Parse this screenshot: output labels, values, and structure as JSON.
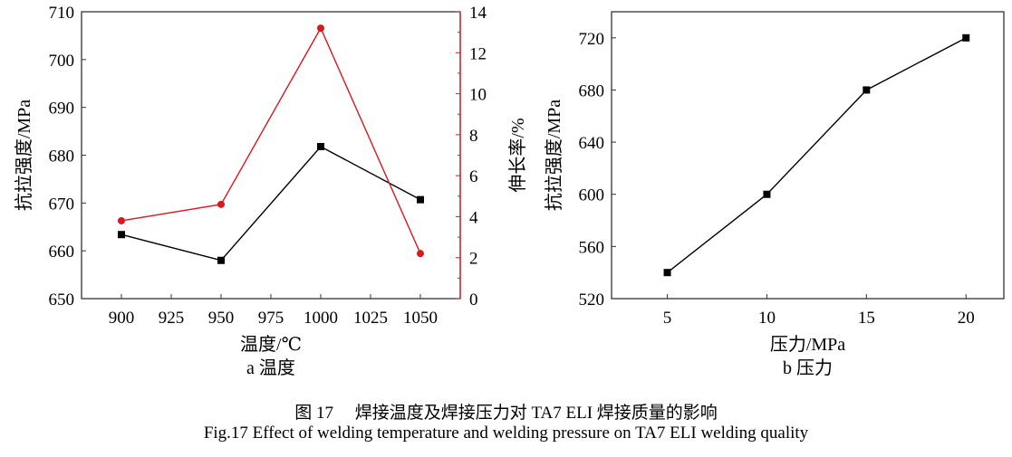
{
  "chart_data": [
    {
      "type": "line",
      "subtitle": "a 温度",
      "xlabel": "温度/℃",
      "ylabel": "抗拉强度/MPa",
      "y2label": "伸长率/%",
      "x": [
        900,
        950,
        1000,
        1050
      ],
      "xticks": [
        900,
        925,
        950,
        975,
        1000,
        1025,
        1050
      ],
      "xlim": [
        880,
        1070
      ],
      "ylim": [
        650,
        710
      ],
      "yticks": [
        650,
        660,
        670,
        680,
        690,
        700,
        710
      ],
      "y2lim": [
        0,
        14
      ],
      "y2ticks": [
        0,
        2,
        4,
        6,
        8,
        10,
        12,
        14
      ],
      "series": [
        {
          "axis": "left",
          "marker": "square",
          "color": "#000000",
          "values": [
            663.4,
            658.0,
            681.8,
            670.7
          ]
        },
        {
          "axis": "right",
          "marker": "circle",
          "color": "#d7191f",
          "values": [
            3.8,
            4.6,
            13.2,
            2.2
          ]
        }
      ],
      "grid": false
    },
    {
      "type": "line",
      "subtitle": "b 压力",
      "xlabel": "压力/MPa",
      "ylabel": "抗拉强度/MPa",
      "x": [
        5,
        10,
        15,
        20
      ],
      "xticks": [
        5,
        10,
        15,
        20
      ],
      "xlim": [
        2.2,
        21.9
      ],
      "ylim": [
        520,
        740
      ],
      "yticks": [
        520,
        560,
        600,
        640,
        680,
        720
      ],
      "series": [
        {
          "axis": "left",
          "marker": "square",
          "color": "#000000",
          "values": [
            540,
            600,
            680,
            720
          ]
        }
      ],
      "grid": false
    }
  ],
  "caption": {
    "zh": "图 17　 焊接温度及焊接压力对 TA7 ELI 焊接质量的影响",
    "en": "Fig.17 Effect of welding temperature and welding pressure on TA7 ELI welding quality"
  }
}
